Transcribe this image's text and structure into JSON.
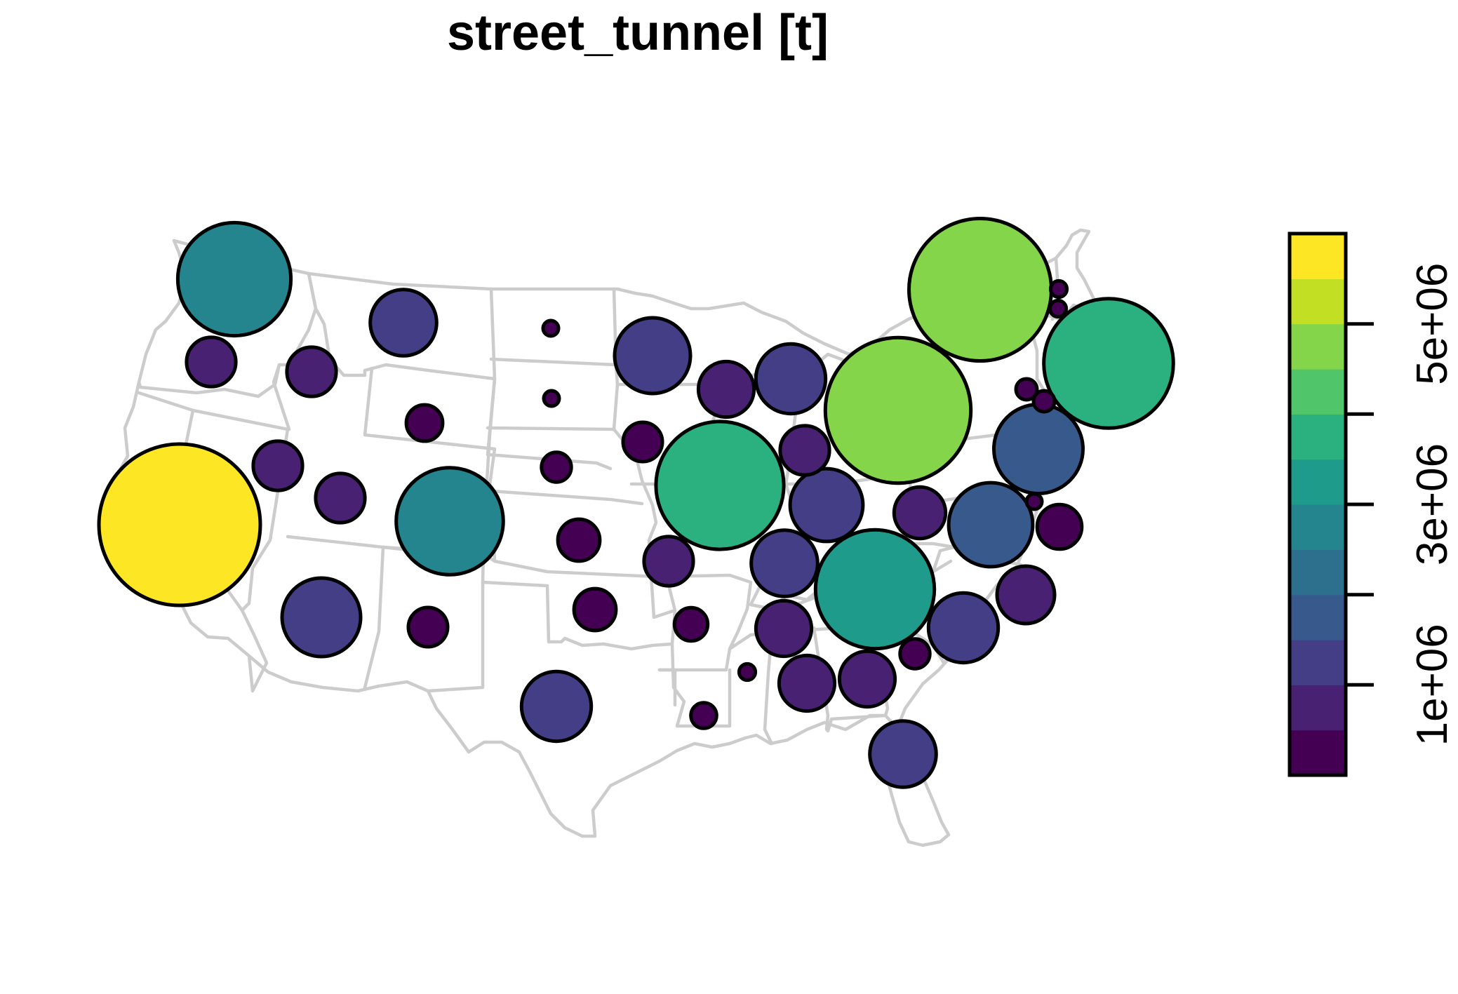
{
  "title": "street_tunnel [t]",
  "chart_data": {
    "type": "proportional-symbol-map",
    "variable": "street_tunnel [t]",
    "legend": {
      "placement": "right",
      "orientation": "vertical",
      "breaks": [
        0,
        500000,
        1000000,
        1500000,
        2000000,
        2500000,
        3000000,
        3500000,
        4000000,
        4500000,
        5000000,
        5500000,
        6000000
      ],
      "colors": [
        "#440154",
        "#482173",
        "#433E85",
        "#38598C",
        "#2D708E",
        "#25858E",
        "#1E9B8A",
        "#2BB07F",
        "#51C56A",
        "#85D54A",
        "#C2DF23",
        "#FDE725"
      ],
      "ticks": [
        {
          "value": 1000000,
          "label": "1e+06"
        },
        {
          "value": 2000000,
          "label": ""
        },
        {
          "value": 3000000,
          "label": "3e+06"
        },
        {
          "value": 4000000,
          "label": ""
        },
        {
          "value": 5000000,
          "label": "5e+06"
        }
      ]
    },
    "points": [
      {
        "state": "CA",
        "value": 5900000
      },
      {
        "state": "NY",
        "value": 4600000
      },
      {
        "state": "PA",
        "value": 4800000
      },
      {
        "state": "MA",
        "value": 3800000
      },
      {
        "state": "IL",
        "value": 3700000
      },
      {
        "state": "WA",
        "value": 2900000
      },
      {
        "state": "CO",
        "value": 2600000
      },
      {
        "state": "TN",
        "value": 3200000
      },
      {
        "state": "NJ",
        "value": 1800000
      },
      {
        "state": "VA",
        "value": 1600000
      },
      {
        "state": "MN",
        "value": 1300000
      },
      {
        "state": "OH",
        "value": 1200000
      },
      {
        "state": "AZ",
        "value": 1400000
      },
      {
        "state": "MI",
        "value": 1100000
      },
      {
        "state": "MT",
        "value": 1000000
      },
      {
        "state": "TX",
        "value": 1100000
      },
      {
        "state": "KY",
        "value": 1000000
      },
      {
        "state": "FL",
        "value": 1000000
      },
      {
        "state": "NC",
        "value": 1100000
      },
      {
        "state": "SC",
        "value": 750000
      },
      {
        "state": "WI",
        "value": 700000
      },
      {
        "state": "IN",
        "value": 550000
      },
      {
        "state": "NV",
        "value": 550000
      },
      {
        "state": "OR",
        "value": 550000
      },
      {
        "state": "ID",
        "value": 550000
      },
      {
        "state": "UT",
        "value": 550000
      },
      {
        "state": "GA",
        "value": 700000
      },
      {
        "state": "AL",
        "value": 700000
      },
      {
        "state": "MS",
        "value": 700000
      },
      {
        "state": "MO",
        "value": 550000
      },
      {
        "state": "WV",
        "value": 600000
      },
      {
        "state": "MD",
        "value": 450000
      },
      {
        "state": "OK",
        "value": 400000
      },
      {
        "state": "KS",
        "value": 400000
      },
      {
        "state": "NM",
        "value": 350000
      },
      {
        "state": "IA",
        "value": 350000
      },
      {
        "state": "WY",
        "value": 300000
      },
      {
        "state": "AR",
        "value": 250000
      },
      {
        "state": "NE",
        "value": 200000
      },
      {
        "state": "GA-coast",
        "value": 200000
      },
      {
        "state": "LA",
        "value": 150000
      },
      {
        "state": "RI",
        "value": 100000
      },
      {
        "state": "CT",
        "value": 100000
      },
      {
        "state": "VT",
        "value": 60000
      },
      {
        "state": "NH",
        "value": 60000
      },
      {
        "state": "ND",
        "value": 50000
      },
      {
        "state": "SD",
        "value": 50000
      },
      {
        "state": "MS-small",
        "value": 60000
      },
      {
        "state": "DE",
        "value": 20000
      }
    ]
  }
}
